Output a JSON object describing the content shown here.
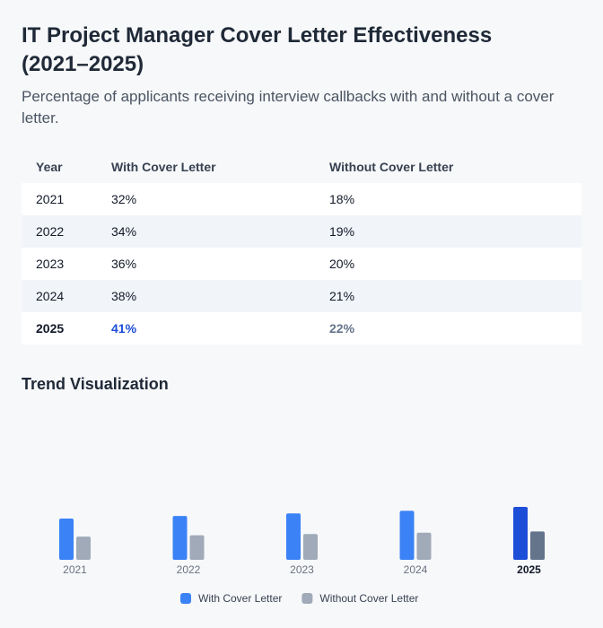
{
  "header": {
    "title": "IT Project Manager Cover Letter Effectiveness (2021–2025)",
    "subtitle": "Percentage of applicants receiving interview callbacks with and without a cover letter."
  },
  "table": {
    "columns": [
      "Year",
      "With Cover Letter",
      "Without Cover Letter"
    ],
    "rows": [
      [
        "2021",
        "32%",
        "18%"
      ],
      [
        "2022",
        "34%",
        "19%"
      ],
      [
        "2023",
        "36%",
        "20%"
      ],
      [
        "2024",
        "38%",
        "21%"
      ],
      [
        "2025",
        "41%",
        "22%"
      ]
    ]
  },
  "chart_data": {
    "type": "bar",
    "title": "Trend Visualization",
    "categories": [
      "2021",
      "2022",
      "2023",
      "2024",
      "2025"
    ],
    "series": [
      {
        "name": "With Cover Letter",
        "color": "#3b82f6",
        "highlight_color": "#1d4ed8",
        "values": [
          32,
          34,
          36,
          38,
          41
        ]
      },
      {
        "name": "Without Cover Letter",
        "color": "#a0aab8",
        "highlight_color": "#64748b",
        "values": [
          18,
          19,
          20,
          21,
          22
        ]
      }
    ],
    "highlight_index": 4
  }
}
